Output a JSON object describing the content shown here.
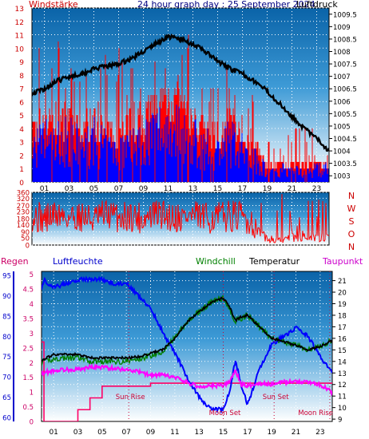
{
  "header": {
    "wind_label": "Windstärke",
    "title": "24 hour graph day : 25 September 2024",
    "pressure_label": "Luftdruck"
  },
  "colors": {
    "wind": "#ff0000",
    "gust_low": "#0000ff",
    "pressure": "#000000",
    "humidity": "#0000ff",
    "temperature": "#000000",
    "dewpoint": "#ff00ff",
    "windchill": "#008000",
    "rain": "#ff0066",
    "left_axis": "#cc0000",
    "grid": "#ffffff"
  },
  "x_ticks": [
    "01",
    "03",
    "05",
    "07",
    "09",
    "11",
    "13",
    "15",
    "17",
    "19",
    "21",
    "23"
  ],
  "chart_data": [
    {
      "type": "line",
      "panel": "wind-pressure",
      "y_left_label": "Windstärke",
      "y_left_ticks": [
        "0",
        "1",
        "2",
        "3",
        "4",
        "5",
        "6",
        "7",
        "8",
        "9",
        "10",
        "11",
        "12",
        "13"
      ],
      "y_left_range": [
        0,
        13
      ],
      "y_right_label": "Luftdruck",
      "y_right_ticks": [
        "1003",
        "1003.5",
        "1004",
        "1004.5",
        "1005",
        "1005.5",
        "1006",
        "1006.5",
        "1007",
        "1007.5",
        "1008",
        "1008.5",
        "1009",
        "1009.5"
      ],
      "y_right_range": [
        1002.75,
        1009.75
      ],
      "x_range_hours": [
        0,
        24
      ],
      "series": [
        {
          "name": "Luftdruck",
          "x": [
            0,
            1,
            2,
            3,
            4,
            5,
            6,
            7,
            8,
            9,
            10,
            11,
            12,
            13,
            14,
            15,
            16,
            17,
            18,
            19,
            20,
            21,
            22,
            23,
            24
          ],
          "values": [
            1006.3,
            1006.5,
            1006.8,
            1007.0,
            1007.1,
            1007.3,
            1007.4,
            1007.5,
            1007.7,
            1008.0,
            1008.3,
            1008.6,
            1008.5,
            1008.3,
            1008.0,
            1007.6,
            1007.3,
            1007.1,
            1006.8,
            1006.4,
            1005.9,
            1005.4,
            1004.9,
            1004.5,
            1004.0
          ]
        },
        {
          "name": "Windstärke",
          "x": [
            0,
            1,
            2,
            3,
            4,
            5,
            6,
            7,
            8,
            9,
            10,
            11,
            12,
            13,
            14,
            15,
            16,
            17,
            18,
            19,
            20,
            21,
            22,
            23,
            24
          ],
          "values": [
            4,
            5,
            5,
            5,
            4,
            5,
            4,
            4,
            5,
            5,
            6,
            7,
            6,
            5,
            4,
            4,
            5,
            4,
            3,
            1.5,
            1.5,
            1.5,
            1.5,
            1.5,
            1.5
          ]
        },
        {
          "name": "Windspitzen",
          "x": [
            0,
            1,
            2,
            3,
            4,
            5,
            6,
            7,
            8,
            9,
            10,
            11,
            12,
            13,
            14,
            15,
            16,
            17,
            18,
            19,
            20,
            21,
            22,
            23,
            24
          ],
          "values": [
            12,
            9,
            10,
            8,
            8,
            7,
            9,
            10,
            8,
            7,
            9,
            9,
            11,
            12,
            8,
            7,
            9,
            8,
            6,
            3,
            3,
            4,
            4,
            4,
            4
          ]
        }
      ]
    },
    {
      "type": "line",
      "panel": "wind-direction",
      "y_left_ticks": [
        "0",
        "50",
        "90",
        "140",
        "180",
        "230",
        "270",
        "320",
        "360"
      ],
      "y_left_range": [
        0,
        360
      ],
      "y_right_ticks": [
        "N",
        "W",
        "S",
        "O",
        "N"
      ],
      "x_range_hours": [
        0,
        24
      ],
      "series": [
        {
          "name": "Windrichtung",
          "x": [
            0,
            1,
            2,
            3,
            4,
            5,
            6,
            7,
            8,
            9,
            10,
            11,
            12,
            13,
            14,
            15,
            16,
            17,
            18,
            19,
            20,
            21,
            22,
            23,
            24
          ],
          "values": [
            200,
            180,
            210,
            190,
            200,
            170,
            210,
            190,
            200,
            180,
            210,
            200,
            190,
            200,
            180,
            190,
            200,
            190,
            150,
            60,
            40,
            60,
            80,
            60,
            80
          ]
        }
      ]
    },
    {
      "type": "line",
      "panel": "climate",
      "legend": [
        "Regen",
        "Luftfeuchte",
        "Windchill",
        "Temperatur",
        "Taupunkt"
      ],
      "y_left_outer_label": "Luftfeuchte",
      "y_left_outer_ticks": [
        "60",
        "65",
        "70",
        "75",
        "80",
        "85",
        "90",
        "95"
      ],
      "y_left_outer_range": [
        59,
        96
      ],
      "y_left_inner_label": "Regen",
      "y_left_inner_ticks": [
        "0",
        "0.5",
        "1",
        "1.5",
        "2",
        "2.5",
        "3",
        "3.5",
        "4",
        "4.5",
        "5"
      ],
      "y_left_inner_range": [
        0,
        5.1
      ],
      "y_right_label": "Temperatur",
      "y_right_ticks": [
        "9",
        "10",
        "11",
        "12",
        "13",
        "14",
        "15",
        "16",
        "17",
        "18",
        "19",
        "20",
        "21"
      ],
      "y_right_range": [
        8.8,
        21.8
      ],
      "x_range_hours": [
        0,
        24
      ],
      "annotations": [
        {
          "text": "Sun Rise",
          "hour": 7.2
        },
        {
          "text": "Sun Set",
          "hour": 19.2
        },
        {
          "text": "Moon Set",
          "hour": 15.0
        },
        {
          "text": "Moon Rise",
          "hour": 23.8
        }
      ],
      "series": [
        {
          "name": "Luftfeuchte",
          "x": [
            0,
            0.3,
            0.5,
            1,
            2,
            3,
            4,
            5,
            6,
            7,
            8,
            9,
            10,
            11,
            12,
            13,
            14,
            15,
            15.5,
            16,
            16.5,
            17,
            18,
            19,
            20,
            21,
            22,
            23,
            24
          ],
          "values": [
            92,
            94,
            93,
            92,
            93,
            94,
            94,
            94,
            93,
            93,
            90,
            87,
            81,
            76,
            70,
            65,
            62,
            62,
            66,
            74,
            68,
            63,
            72,
            78,
            80,
            82,
            80,
            75,
            71
          ]
        },
        {
          "name": "Temperatur",
          "x": [
            0,
            1,
            2,
            3,
            4,
            5,
            6,
            7,
            8,
            9,
            10,
            11,
            12,
            13,
            14,
            15,
            15.5,
            16,
            16.5,
            17,
            18,
            19,
            20,
            21,
            22,
            23,
            24
          ],
          "values": [
            14.1,
            14.6,
            14.6,
            14.6,
            14.3,
            14.3,
            14.3,
            14.3,
            14.4,
            14.7,
            15.0,
            16.0,
            17.4,
            18.3,
            19.1,
            19.5,
            18.8,
            17.5,
            17.9,
            18.0,
            17.0,
            16.0,
            15.7,
            15.4,
            15.0,
            15.3,
            15.8
          ]
        },
        {
          "name": "Taupunkt",
          "x": [
            0,
            1,
            2,
            3,
            4,
            5,
            6,
            7,
            8,
            9,
            10,
            11,
            12,
            13,
            14,
            15,
            15.5,
            16,
            16.5,
            17,
            18,
            19,
            20,
            21,
            22,
            23,
            24
          ],
          "values": [
            13.0,
            13.2,
            13.3,
            13.3,
            13.5,
            13.5,
            13.4,
            13.3,
            13.1,
            12.8,
            12.8,
            12.6,
            12.2,
            11.8,
            11.9,
            11.9,
            12.2,
            13.2,
            12.0,
            11.9,
            12.1,
            12.0,
            12.2,
            12.3,
            12.2,
            12.0,
            11.3
          ]
        },
        {
          "name": "Windchill",
          "x": [
            0,
            1,
            2,
            3,
            4,
            5,
            6,
            7,
            8,
            9,
            10,
            11,
            12,
            13,
            14,
            15,
            16,
            17,
            18,
            19,
            20,
            21,
            22,
            23,
            24
          ],
          "values": [
            13.9,
            14.2,
            14.3,
            14.3,
            14.0,
            14.0,
            14.0,
            14.0,
            14.2,
            14.5,
            14.9,
            16.0,
            17.4,
            18.3,
            19.1,
            19.5,
            17.5,
            18.0,
            17.0,
            16.0,
            15.7,
            15.4,
            15.0,
            15.3,
            15.8
          ]
        },
        {
          "name": "Regen",
          "x": [
            0,
            0.2,
            2.0,
            3.0,
            4.0,
            5.0,
            9.0,
            24.0
          ],
          "values": [
            2.7,
            0,
            0,
            0.4,
            0.8,
            1.2,
            1.3,
            1.3
          ]
        }
      ]
    }
  ]
}
